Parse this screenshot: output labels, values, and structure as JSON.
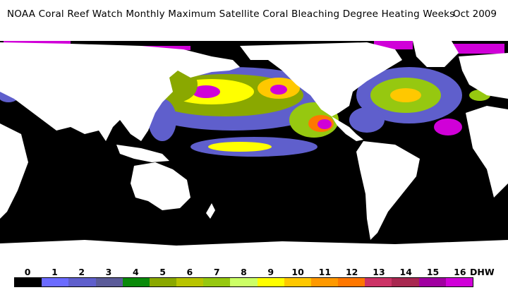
{
  "title": "NOAA Coral Reef Watch Monthly Maximum Satellite Coral Bleaching Degree Heating Weeks",
  "date": "Oct 2009",
  "legend": {
    "unit": "DHW",
    "labels": [
      "0",
      "1",
      "2",
      "3",
      "4",
      "5",
      "6",
      "7",
      "8",
      "9",
      "10",
      "11",
      "12",
      "13",
      "14",
      "15",
      "16"
    ],
    "colors": [
      "#000000",
      "#6b6bff",
      "#5f5fcc",
      "#5b5b99",
      "#0a8a0a",
      "#8aa800",
      "#b8c400",
      "#96c810",
      "#ccff66",
      "#ffff00",
      "#ffc800",
      "#ff9900",
      "#ff7700",
      "#cc3366",
      "#a82850",
      "#a000a0",
      "#d000d8"
    ]
  },
  "map": {
    "ocean_color": "#000000",
    "land_color": "#ffffff"
  }
}
